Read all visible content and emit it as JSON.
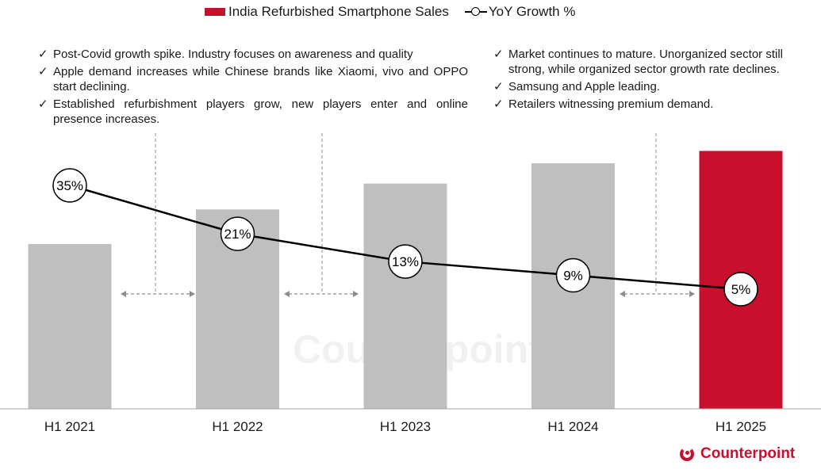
{
  "chart_data": {
    "type": "bar+line",
    "categories": [
      "H1 2021",
      "H1 2022",
      "H1 2023",
      "H1 2024",
      "H1 2025"
    ],
    "series": [
      {
        "name": "India Refurbished Smartphone Sales",
        "type": "bar",
        "values": [
          100,
          121,
          136.7,
          149,
          156.5
        ],
        "colors": [
          "#bfbfbf",
          "#bfbfbf",
          "#bfbfbf",
          "#bfbfbf",
          "#c8102e"
        ]
      },
      {
        "name": "YoY Growth %",
        "type": "line",
        "values": [
          35,
          21,
          13,
          9,
          5
        ],
        "labels": [
          "35%",
          "21%",
          "13%",
          "9%",
          "5%"
        ]
      }
    ],
    "y_axis_shown": false,
    "grid": false,
    "legend_placement": "top"
  },
  "annotations": {
    "left": [
      "Post-Covid growth spike. Industry focuses on awareness and quality",
      "Apple demand increases while Chinese brands like Xiaomi, vivo and OPPO start declining.",
      "Established refurbishment players grow, new players enter and online presence increases."
    ],
    "right": [
      "Market continues to mature. Unorganized sector still strong, while organized sector growth rate declines.",
      "Samsung and Apple leading.",
      "Retailers witnessing premium demand."
    ]
  },
  "brand": {
    "logo_text": "Counterpoint",
    "watermark_text": "Counterpoint",
    "accent": "#c8102e",
    "bar_gray": "#bfbfbf"
  }
}
